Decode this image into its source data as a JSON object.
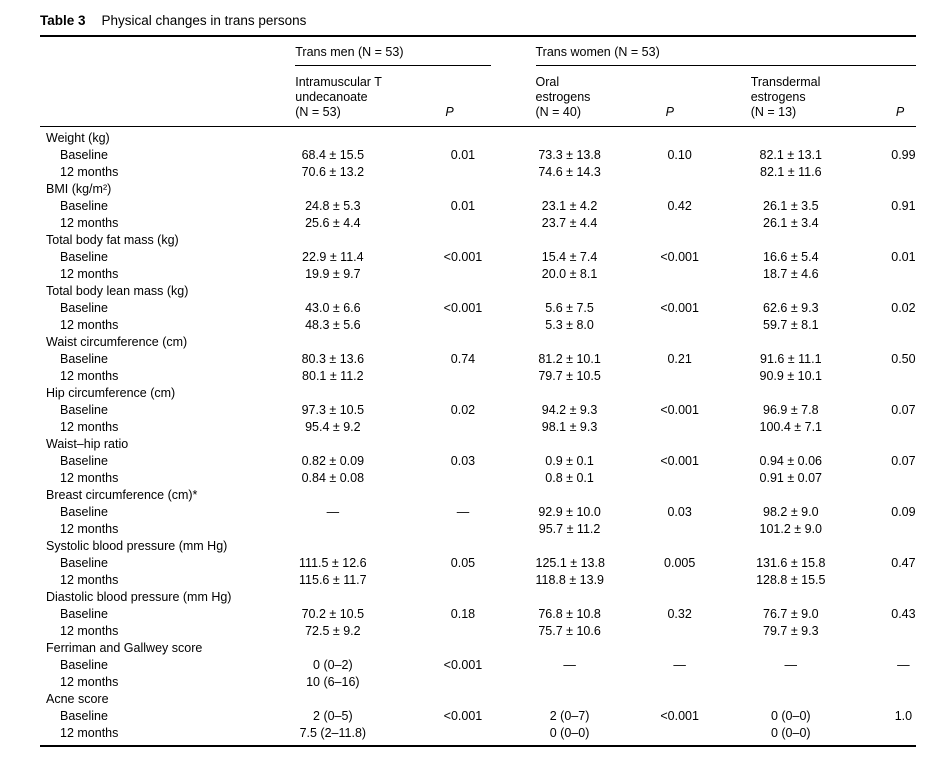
{
  "caption": {
    "label": "Table 3",
    "text": "Physical changes in trans persons"
  },
  "table": {
    "group_headers": [
      {
        "label": "Trans men (N = 53)"
      },
      {
        "label": "Trans women (N = 53)"
      }
    ],
    "column_headers": [
      {
        "label": "Intramuscular T\nundecanoate\n(N = 53)",
        "italic": false
      },
      {
        "label": "P",
        "italic": true
      },
      {
        "label": "Oral\nestrogens\n(N = 40)",
        "italic": false
      },
      {
        "label": "P",
        "italic": true
      },
      {
        "label": "Transdermal\nestrogens\n(N = 13)",
        "italic": false
      },
      {
        "label": "P",
        "italic": true
      }
    ],
    "sections": [
      {
        "name": "Weight (kg)",
        "rows": [
          {
            "label": "Baseline",
            "values": [
              "68.4 ± 15.5",
              "0.01",
              "73.3 ± 13.8",
              "0.10",
              "82.1 ± 13.1",
              "0.99"
            ]
          },
          {
            "label": "12 months",
            "values": [
              "70.6 ± 13.2",
              "",
              "74.6 ± 14.3",
              "",
              "82.1 ± 11.6",
              ""
            ]
          }
        ]
      },
      {
        "name": "BMI (kg/m²)",
        "rows": [
          {
            "label": "Baseline",
            "values": [
              "24.8 ± 5.3",
              "0.01",
              "23.1 ± 4.2",
              "0.42",
              "26.1 ± 3.5",
              "0.91"
            ]
          },
          {
            "label": "12 months",
            "values": [
              "25.6 ± 4.4",
              "",
              "23.7 ± 4.4",
              "",
              "26.1 ± 3.4",
              ""
            ]
          }
        ]
      },
      {
        "name": "Total body fat mass (kg)",
        "rows": [
          {
            "label": "Baseline",
            "values": [
              "22.9 ± 11.4",
              "<0.001",
              "15.4 ± 7.4",
              "<0.001",
              "16.6 ± 5.4",
              "0.01"
            ]
          },
          {
            "label": "12 months",
            "values": [
              "19.9 ± 9.7",
              "",
              "20.0 ± 8.1",
              "",
              "18.7 ± 4.6",
              ""
            ]
          }
        ]
      },
      {
        "name": "Total body lean mass (kg)",
        "rows": [
          {
            "label": "Baseline",
            "values": [
              "43.0 ± 6.6",
              "<0.001",
              "5.6 ± 7.5",
              "<0.001",
              "62.6 ± 9.3",
              "0.02"
            ]
          },
          {
            "label": "12 months",
            "values": [
              "48.3 ± 5.6",
              "",
              "5.3 ± 8.0",
              "",
              "59.7 ± 8.1",
              ""
            ]
          }
        ]
      },
      {
        "name": "Waist circumference (cm)",
        "rows": [
          {
            "label": "Baseline",
            "values": [
              "80.3 ± 13.6",
              "0.74",
              "81.2 ± 10.1",
              "0.21",
              "91.6 ± 11.1",
              "0.50"
            ]
          },
          {
            "label": "12 months",
            "values": [
              "80.1 ± 11.2",
              "",
              "79.7 ± 10.5",
              "",
              "90.9 ± 10.1",
              ""
            ]
          }
        ]
      },
      {
        "name": "Hip circumference (cm)",
        "rows": [
          {
            "label": "Baseline",
            "values": [
              "97.3 ± 10.5",
              "0.02",
              "94.2 ± 9.3",
              "<0.001",
              "96.9 ± 7.8",
              "0.07"
            ]
          },
          {
            "label": "12 months",
            "values": [
              "95.4 ± 9.2",
              "",
              "98.1 ± 9.3",
              "",
              "100.4 ± 7.1",
              ""
            ]
          }
        ]
      },
      {
        "name": "Waist–hip ratio",
        "rows": [
          {
            "label": "Baseline",
            "values": [
              "0.82 ± 0.09",
              "0.03",
              "0.9 ± 0.1",
              "<0.001",
              "0.94 ± 0.06",
              "0.07"
            ]
          },
          {
            "label": "12 months",
            "values": [
              "0.84 ± 0.08",
              "",
              "0.8 ± 0.1",
              "",
              "0.91 ± 0.07",
              ""
            ]
          }
        ]
      },
      {
        "name": "Breast circumference (cm)*",
        "rows": [
          {
            "label": "Baseline",
            "values": [
              "—",
              "—",
              "92.9 ± 10.0",
              "0.03",
              "98.2 ± 9.0",
              "0.09"
            ]
          },
          {
            "label": "12 months",
            "values": [
              "",
              "",
              "95.7 ± 11.2",
              "",
              "101.2 ± 9.0",
              ""
            ]
          }
        ]
      },
      {
        "name": "Systolic blood pressure (mm Hg)",
        "rows": [
          {
            "label": "Baseline",
            "values": [
              "111.5 ± 12.6",
              "0.05",
              "125.1 ± 13.8",
              "0.005",
              "131.6 ± 15.8",
              "0.47"
            ]
          },
          {
            "label": "12 months",
            "values": [
              "115.6 ± 11.7",
              "",
              "118.8 ± 13.9",
              "",
              "128.8 ± 15.5",
              ""
            ]
          }
        ]
      },
      {
        "name": "Diastolic blood pressure (mm Hg)",
        "rows": [
          {
            "label": "Baseline",
            "values": [
              "70.2 ± 10.5",
              "0.18",
              "76.8 ± 10.8",
              "0.32",
              "76.7 ± 9.0",
              "0.43"
            ]
          },
          {
            "label": "12 months",
            "values": [
              "72.5 ± 9.2",
              "",
              "75.7 ± 10.6",
              "",
              "79.7 ± 9.3",
              ""
            ]
          }
        ]
      },
      {
        "name": "Ferriman and Gallwey score",
        "rows": [
          {
            "label": "Baseline",
            "values": [
              "0 (0–2)",
              "<0.001",
              "—",
              "—",
              "—",
              "—"
            ]
          },
          {
            "label": "12 months",
            "values": [
              "10 (6–16)",
              "",
              "",
              "",
              "",
              ""
            ]
          }
        ]
      },
      {
        "name": "Acne score",
        "rows": [
          {
            "label": "Baseline",
            "values": [
              "2 (0–5)",
              "<0.001",
              "2 (0–7)",
              "<0.001",
              "0 (0–0)",
              "1.0"
            ]
          },
          {
            "label": "12 months",
            "values": [
              "7.5 (2–11.8)",
              "",
              "0 (0–0)",
              "",
              "0 (0–0)",
              ""
            ]
          }
        ]
      }
    ]
  }
}
